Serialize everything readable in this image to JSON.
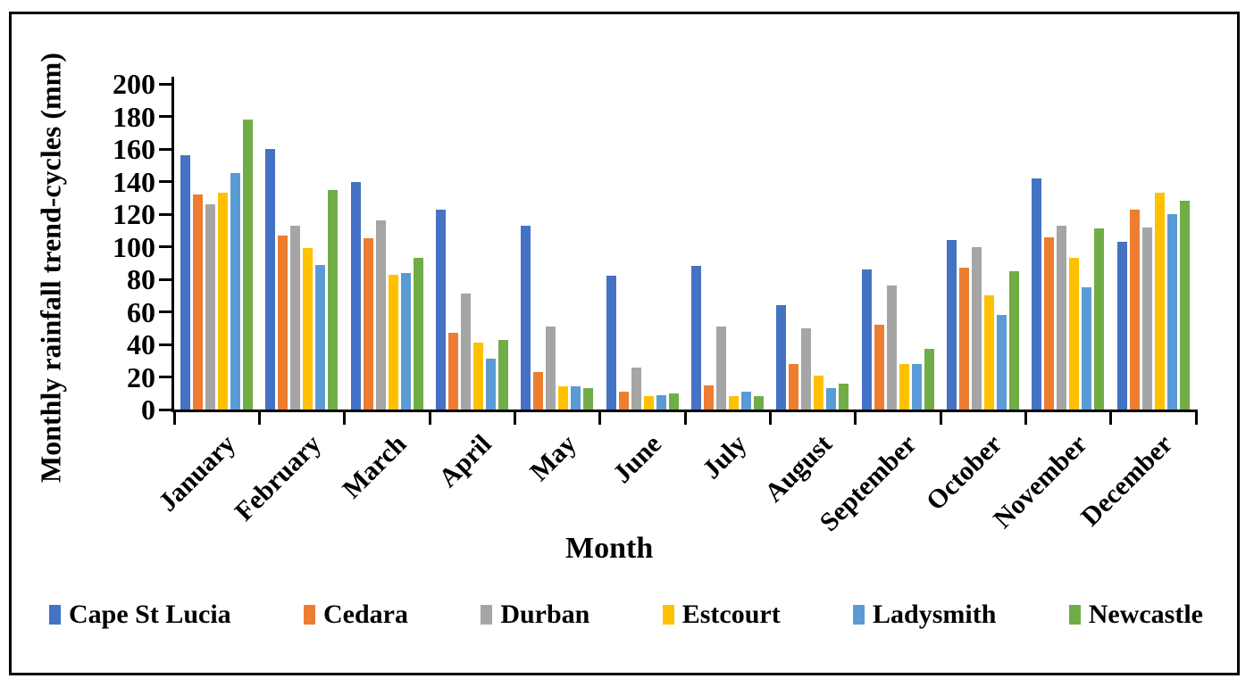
{
  "chart_data": {
    "type": "bar",
    "title": "",
    "xlabel": "Month",
    "ylabel": "Monthly rainfall trend-cycles (mm)",
    "ylim": [
      0,
      200
    ],
    "ytick_step": 20,
    "grid": false,
    "legend_position": "bottom",
    "categories": [
      "January",
      "February",
      "March",
      "April",
      "May",
      "June",
      "July",
      "August",
      "September",
      "October",
      "November",
      "December"
    ],
    "series": [
      {
        "name": "Cape St Lucia",
        "color": "#4472C4",
        "values": [
          156,
          160,
          140,
          123,
          113,
          82,
          88,
          64,
          86,
          104,
          142,
          103
        ]
      },
      {
        "name": "Cedara",
        "color": "#ED7D31",
        "values": [
          132,
          107,
          105,
          47,
          23,
          11,
          15,
          28,
          52,
          87,
          106,
          123
        ]
      },
      {
        "name": "Durban",
        "color": "#A5A5A5",
        "values": [
          126,
          113,
          116,
          71,
          51,
          26,
          51,
          50,
          76,
          100,
          113,
          112
        ]
      },
      {
        "name": "Estcourt",
        "color": "#FFC000",
        "values": [
          133,
          99,
          83,
          41,
          14,
          8,
          8,
          21,
          28,
          70,
          93,
          133
        ]
      },
      {
        "name": "Ladysmith",
        "color": "#5B9BD5",
        "values": [
          145,
          89,
          84,
          31,
          14,
          9,
          11,
          13,
          28,
          58,
          75,
          120
        ]
      },
      {
        "name": "Newcastle",
        "color": "#70AD47",
        "values": [
          178,
          135,
          93,
          43,
          13,
          10,
          8,
          16,
          37,
          85,
          111,
          128
        ]
      }
    ]
  }
}
